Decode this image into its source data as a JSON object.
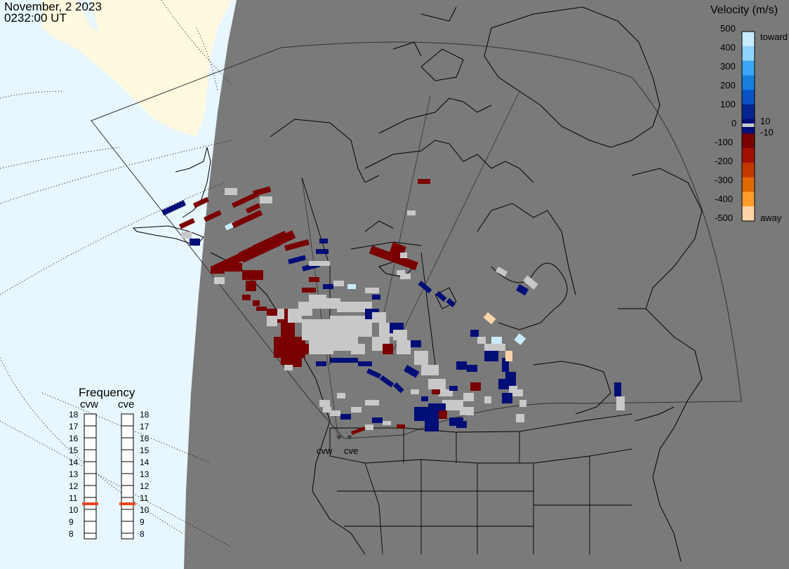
{
  "title": {
    "date": "November, 2 2023",
    "time": "0232:00 UT"
  },
  "colorbar": {
    "title": "Velocity (m/s)",
    "ticks": [
      "500",
      "400",
      "300",
      "200",
      "100",
      "0",
      "-100",
      "-200",
      "-300",
      "-400",
      "-500"
    ],
    "toward_label": "toward",
    "away_label": "away",
    "pos_threshold": "10",
    "neg_threshold": "-10",
    "colors": [
      "#c8ebff",
      "#8fd3ff",
      "#3aa6f5",
      "#157fe0",
      "#0a52c4",
      "#06258f",
      "#000e78",
      "#7a0000",
      "#a01000",
      "#c43800",
      "#e06a00",
      "#ff9d2a",
      "#ffd4a8"
    ]
  },
  "frequency": {
    "title": "Frequency",
    "radars": [
      "cvw",
      "cve"
    ],
    "levels": [
      "18",
      "17",
      "16",
      "15",
      "14",
      "13",
      "12",
      "11",
      "10",
      "9",
      "8"
    ],
    "selected_mhz": [
      10.7,
      10.7
    ],
    "marker_color": "#e8451a"
  },
  "radar_sites": [
    "cvw",
    "cve"
  ],
  "colors": {
    "land_gray": "#7a7a7a",
    "sunlit_land": "#fff9e0",
    "sunlit_ocean": "#e8f6ff",
    "ground_scatter": "#c8c8c8"
  }
}
